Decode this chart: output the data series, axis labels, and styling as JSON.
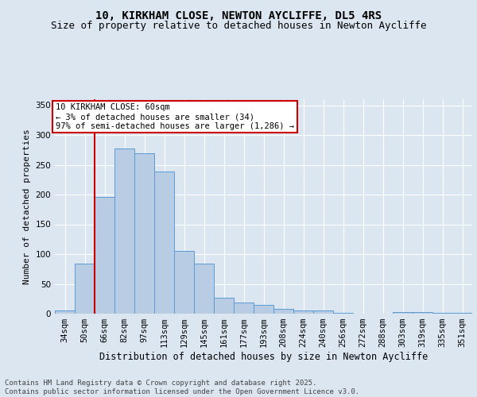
{
  "title1": "10, KIRKHAM CLOSE, NEWTON AYCLIFFE, DL5 4RS",
  "title2": "Size of property relative to detached houses in Newton Aycliffe",
  "xlabel": "Distribution of detached houses by size in Newton Aycliffe",
  "ylabel": "Number of detached properties",
  "categories": [
    "34sqm",
    "50sqm",
    "66sqm",
    "82sqm",
    "97sqm",
    "113sqm",
    "129sqm",
    "145sqm",
    "161sqm",
    "177sqm",
    "193sqm",
    "208sqm",
    "224sqm",
    "240sqm",
    "256sqm",
    "272sqm",
    "288sqm",
    "303sqm",
    "319sqm",
    "335sqm",
    "351sqm"
  ],
  "values": [
    5,
    84,
    196,
    278,
    270,
    239,
    105,
    84,
    27,
    19,
    15,
    8,
    5,
    5,
    2,
    0,
    0,
    3,
    3,
    2,
    2
  ],
  "bar_color": "#b8cce4",
  "bar_edge_color": "#5b9bd5",
  "vline_x_idx": 1,
  "annotation_text": "10 KIRKHAM CLOSE: 60sqm\n← 3% of detached houses are smaller (34)\n97% of semi-detached houses are larger (1,286) →",
  "annotation_box_color": "#ffffff",
  "annotation_box_edge_color": "#cc0000",
  "bg_color": "#dce6f1",
  "plot_bg_color": "#dce6f1",
  "footer": "Contains HM Land Registry data © Crown copyright and database right 2025.\nContains public sector information licensed under the Open Government Licence v3.0.",
  "ylim": [
    0,
    360
  ],
  "yticks": [
    0,
    50,
    100,
    150,
    200,
    250,
    300,
    350
  ],
  "vline_color": "#cc0000",
  "grid_color": "#ffffff",
  "title1_fontsize": 10,
  "title2_fontsize": 9,
  "xlabel_fontsize": 8.5,
  "ylabel_fontsize": 8,
  "tick_fontsize": 7.5,
  "footer_fontsize": 6.5,
  "ann_fontsize": 7.5
}
